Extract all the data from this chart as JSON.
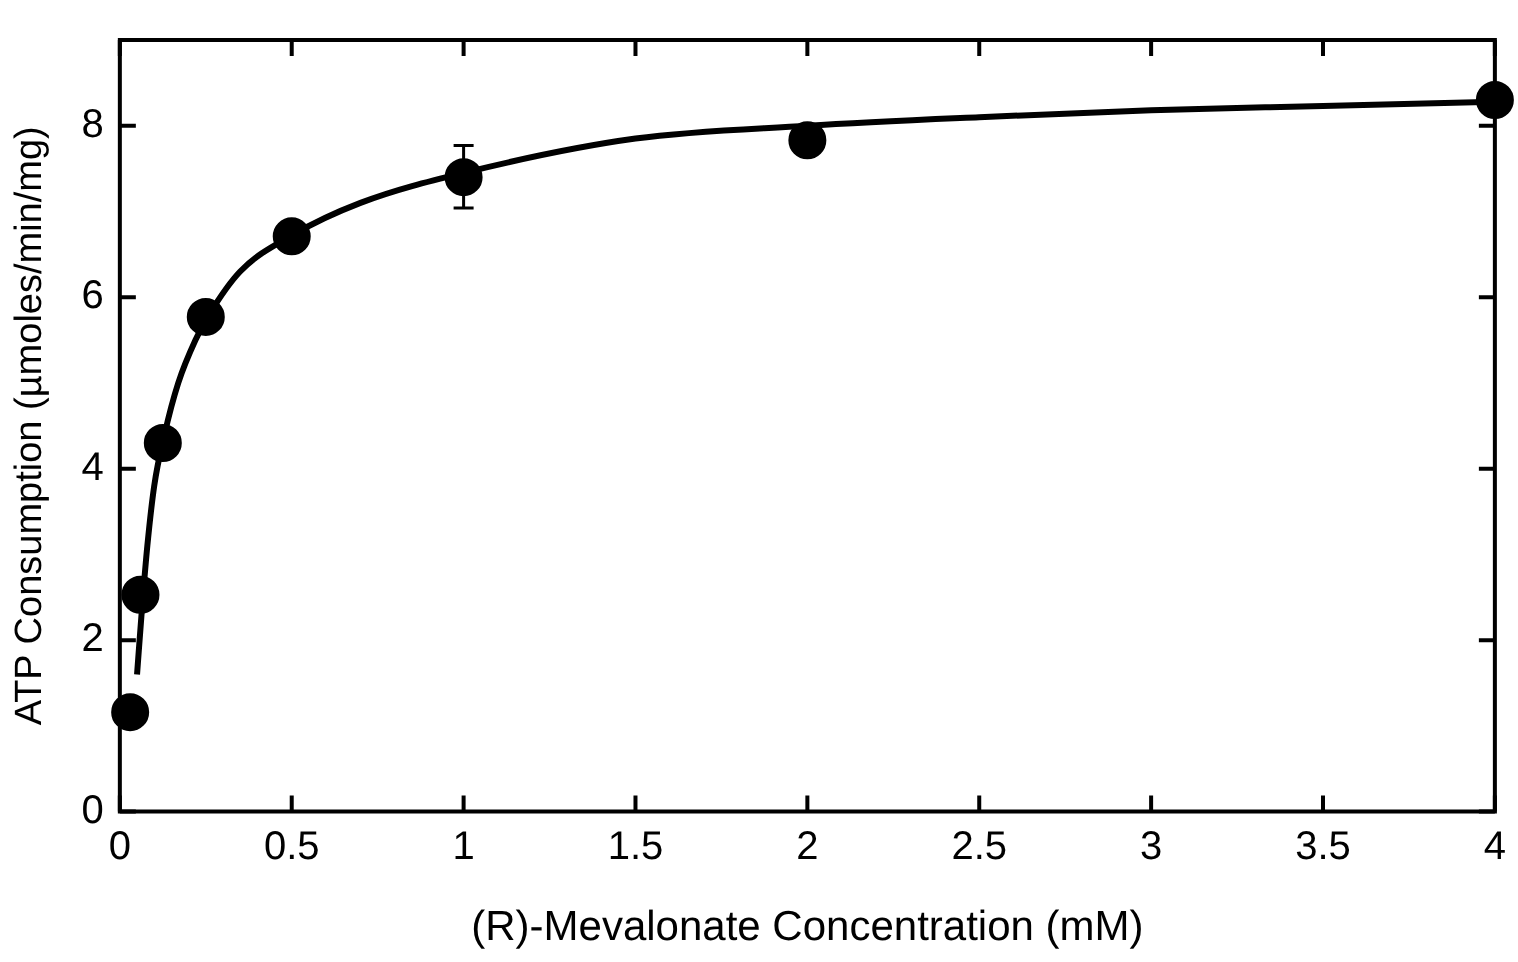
{
  "chart_data": {
    "type": "scatter",
    "xlabel": "(R)-Mevalonate Concentration (mM)",
    "ylabel": "ATP Consumption (µmoles/min/mg)",
    "xlim": [
      0,
      4
    ],
    "xticks": [
      0,
      0.5,
      1,
      1.5,
      2,
      2.5,
      3,
      3.5,
      4
    ],
    "ylim": [
      0,
      9
    ],
    "yticks": [
      0,
      2,
      4,
      6,
      8
    ],
    "grid": false,
    "legend": false,
    "series": [
      {
        "marker": "circle",
        "color": "#000000",
        "x": [
          0.03,
          0.06,
          0.125,
          0.25,
          0.5,
          1,
          2,
          4
        ],
        "values": [
          1.16,
          2.53,
          4.3,
          5.77,
          6.71,
          7.4,
          7.83,
          8.3
        ],
        "errors": [
          null,
          null,
          null,
          null,
          null,
          [
            7.04,
            7.77
          ],
          null,
          null
        ]
      },
      {
        "type": "line",
        "marker": "none",
        "color": "#000000",
        "line_style": "solid",
        "x": [
          0.05,
          0.065,
          0.08,
          0.1,
          0.13,
          0.17,
          0.22,
          0.26,
          0.35,
          0.5,
          0.7,
          1,
          1.5,
          2,
          2.5,
          3,
          3.5,
          4
        ],
        "values": [
          1.6,
          2.4,
          3.1,
          3.8,
          4.4,
          5.0,
          5.5,
          5.8,
          6.3,
          6.72,
          7.1,
          7.45,
          7.85,
          8.0,
          8.1,
          8.18,
          8.23,
          8.28
        ]
      }
    ]
  }
}
